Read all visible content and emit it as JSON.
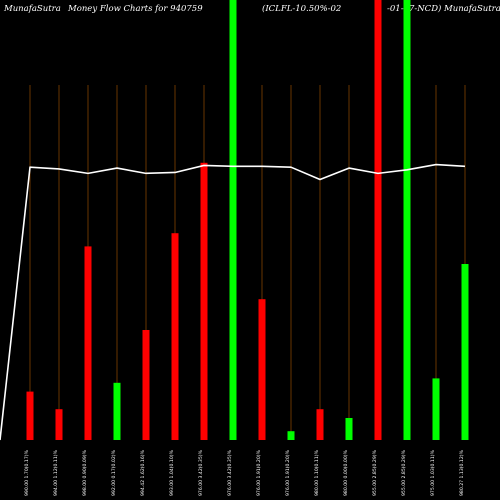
{
  "header": {
    "brand": "MunafaSutra",
    "subject": "Money Flow  Charts for 940759",
    "instrument_a": "(ICLFL-10.50%-02",
    "instrument_b": "-01-27-NCD) MunafaSutra"
  },
  "colors": {
    "background": "#000000",
    "up": "#00ff00",
    "down": "#ff0000",
    "guide": "#b05a00",
    "line": "#ffffff",
    "text": "#ffffff"
  },
  "chart_data": {
    "type": "bar",
    "title": "",
    "ylim": [
      0,
      100
    ],
    "categories": [
      "990.00 1.70(0.17)%",
      "994.00 1.12(0.11)%",
      "998.00 0.90(0.09)%",
      "992.00 0.17(0.02)%",
      "994.42 1.62(0.16)%",
      "993.00 1.04(0.10)%",
      "976.00 3.42(0.35)%",
      "976.00 3.42(0.35)%",
      "976.00 1.91(0.20)%",
      "976.00 1.91(0.20)%",
      "980.00 1.10(0.11)%",
      "980.00 0.00(0.00)%",
      "955.00 2.85(0.29)%",
      "955.00 2.85(0.29)%",
      "975.00 1.03(0.11)%",
      "980.27 1.13(0.12)%"
    ],
    "series": [
      {
        "values": [
          11,
          7,
          44,
          13,
          25,
          47,
          63,
          100,
          32,
          2,
          7,
          5,
          100,
          100,
          14,
          40
        ],
        "direction": [
          "down",
          "down",
          "down",
          "up",
          "down",
          "down",
          "down",
          "up",
          "down",
          "up",
          "down",
          "up",
          "down",
          "up",
          "up",
          "up"
        ]
      },
      {
        "kind": "line",
        "values": [
          62.0,
          61.6,
          60.6,
          61.8,
          60.6,
          60.8,
          62.4,
          62.2,
          62.2,
          62.0,
          59.2,
          61.8,
          60.6,
          61.4,
          62.6,
          62.2
        ]
      }
    ],
    "grid": false,
    "legend": "none"
  }
}
